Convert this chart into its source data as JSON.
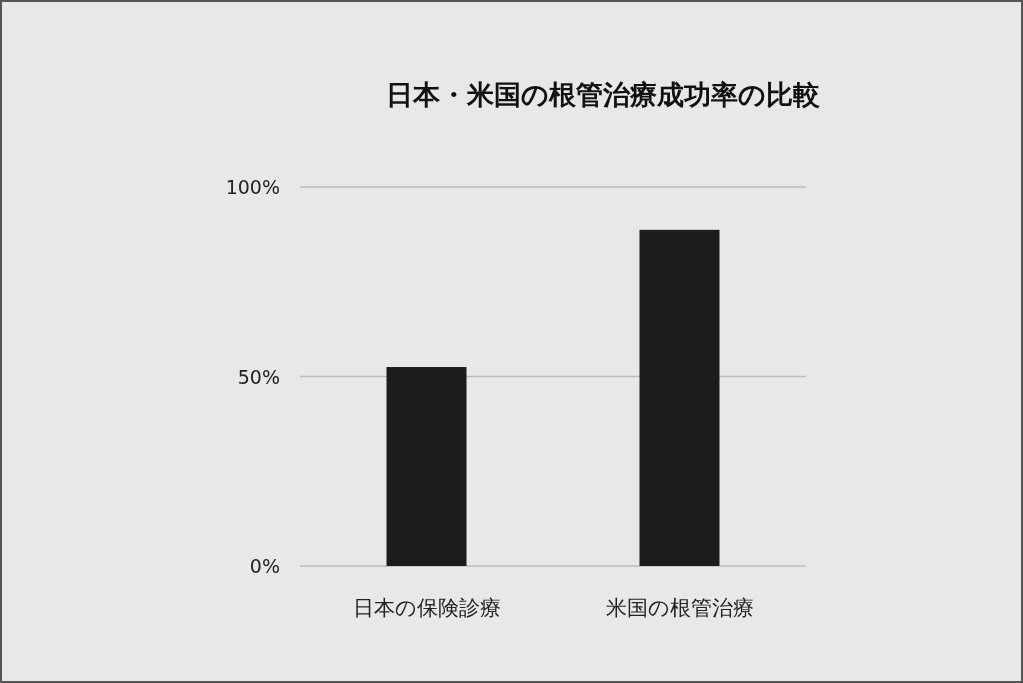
{
  "chart_data": {
    "type": "bar",
    "title": "日本・米国の根管治療成功率の比較",
    "categories": [
      "日本の保険診療",
      "米国の根管治療"
    ],
    "values": [
      52.5,
      88.7
    ],
    "color": "#1c1c1c",
    "ylim": [
      0,
      100
    ],
    "yticks": [
      {
        "value": 0,
        "label": "0%"
      },
      {
        "value": 50,
        "label": "50%"
      },
      {
        "value": 100,
        "label": "100%"
      }
    ],
    "grid": "y"
  }
}
